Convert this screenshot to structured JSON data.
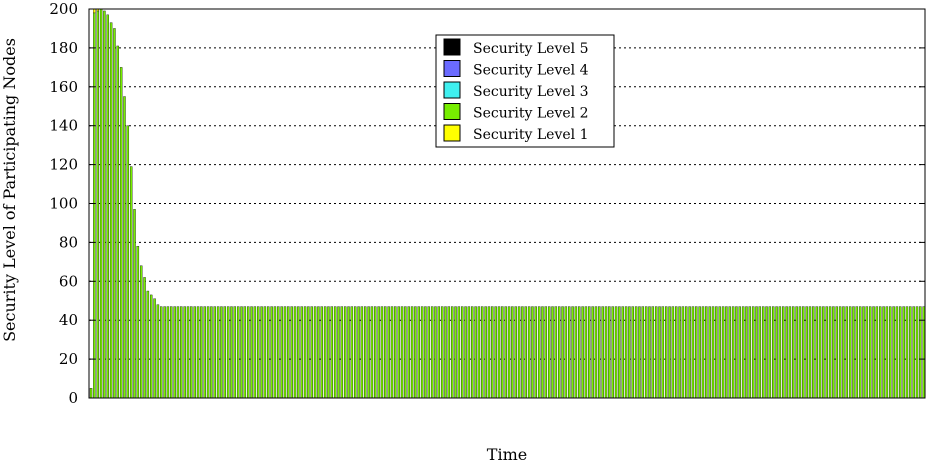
{
  "chart_data": {
    "type": "bar",
    "stacked": true,
    "title": "",
    "xlabel": "Time",
    "ylabel": "Security Level of Participating Nodes",
    "ylim": [
      0,
      200
    ],
    "yticks": [
      0,
      20,
      40,
      60,
      80,
      100,
      120,
      140,
      160,
      180,
      200
    ],
    "grid": "horizontal dotted",
    "legend_position": "top-center",
    "legend": [
      {
        "name": "Security Level 5",
        "color": "#000000"
      },
      {
        "name": "Security Level 4",
        "color": "#6b6bff"
      },
      {
        "name": "Security Level 3",
        "color": "#3ff0f0"
      },
      {
        "name": "Security Level 2",
        "color": "#77ee00"
      },
      {
        "name": "Security Level 1",
        "color": "#ffff00"
      }
    ],
    "bar_count": 250,
    "series": [
      {
        "name": "Security Level 2",
        "color": "#77ee00",
        "values": [
          5,
          198,
          199,
          200,
          199,
          197,
          193,
          190,
          181,
          170,
          155,
          140,
          119,
          97,
          78,
          68,
          62,
          55,
          53,
          51,
          48
        ],
        "then_constant": 47
      },
      {
        "name": "Security Level 1",
        "color": "#ffff00",
        "values": [
          0,
          2,
          1,
          0,
          0,
          0,
          0,
          0,
          0,
          0,
          0,
          0,
          0,
          0,
          0,
          0,
          0,
          0,
          0,
          0,
          0
        ],
        "then_constant": 0
      }
    ]
  }
}
